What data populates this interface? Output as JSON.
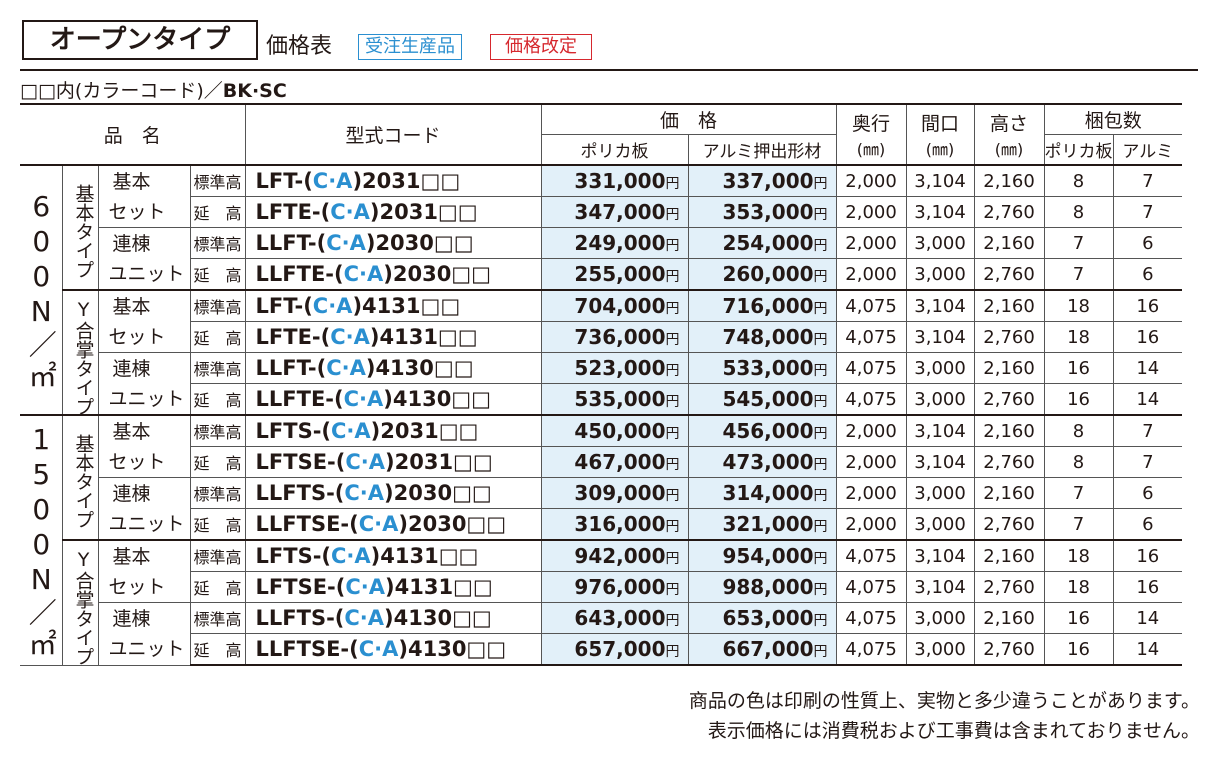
{
  "header": {
    "title": "オープンタイプ",
    "subtitle": "価格表",
    "tag_order": "受注生産品",
    "tag_revised": "価格改定",
    "note_prefix": "□□内(カラーコード)／",
    "note_codes": "BK·SC"
  },
  "table": {
    "head": {
      "name": "品　名",
      "code": "型式コード",
      "price": "価　格",
      "price_poly": "ポリカ板",
      "price_alum": "アルミ押出形材",
      "depth": [
        "奥行",
        "(㎜)"
      ],
      "width": [
        "間口",
        "(㎜)"
      ],
      "tall": [
        "高さ",
        "(㎜)"
      ],
      "pack": "梱包数",
      "pack_poly": "ポリカ板",
      "pack_alum": "アルミ"
    },
    "groups": [
      {
        "label": "600N／㎡",
        "types": [
          {
            "label": "基本タイプ",
            "sets": [
              {
                "label": [
                  "基本",
                  "セット"
                ],
                "rows": [
                  {
                    "height": "標準高",
                    "code": [
                      "LFT-(",
                      "C·A",
                      ")2031□□"
                    ],
                    "price": [
                      [
                        "331,000",
                        "円"
                      ],
                      [
                        "337,000",
                        "円"
                      ]
                    ],
                    "size": [
                      "2,000",
                      "3,104",
                      "2,160"
                    ],
                    "pack": [
                      "8",
                      "7"
                    ]
                  },
                  {
                    "height": "延　高",
                    "code": [
                      "LFTE-(",
                      "C·A",
                      ")2031□□"
                    ],
                    "price": [
                      [
                        "347,000",
                        "円"
                      ],
                      [
                        "353,000",
                        "円"
                      ]
                    ],
                    "size": [
                      "2,000",
                      "3,104",
                      "2,760"
                    ],
                    "pack": [
                      "8",
                      "7"
                    ]
                  }
                ]
              },
              {
                "label": [
                  "連棟",
                  "ユニット"
                ],
                "rows": [
                  {
                    "height": "標準高",
                    "code": [
                      "LLFT-(",
                      "C·A",
                      ")2030□□"
                    ],
                    "price": [
                      [
                        "249,000",
                        "円"
                      ],
                      [
                        "254,000",
                        "円"
                      ]
                    ],
                    "size": [
                      "2,000",
                      "3,000",
                      "2,160"
                    ],
                    "pack": [
                      "7",
                      "6"
                    ]
                  },
                  {
                    "height": "延　高",
                    "code": [
                      "LLFTE-(",
                      "C·A",
                      ")2030□□"
                    ],
                    "price": [
                      [
                        "255,000",
                        "円"
                      ],
                      [
                        "260,000",
                        "円"
                      ]
                    ],
                    "size": [
                      "2,000",
                      "3,000",
                      "2,760"
                    ],
                    "pack": [
                      "7",
                      "6"
                    ]
                  }
                ]
              }
            ]
          },
          {
            "label": "Y合掌タイプ",
            "sets": [
              {
                "label": [
                  "基本",
                  "セット"
                ],
                "rows": [
                  {
                    "height": "標準高",
                    "code": [
                      "LFT-(",
                      "C·A",
                      ")4131□□"
                    ],
                    "price": [
                      [
                        "704,000",
                        "円"
                      ],
                      [
                        "716,000",
                        "円"
                      ]
                    ],
                    "size": [
                      "4,075",
                      "3,104",
                      "2,160"
                    ],
                    "pack": [
                      "18",
                      "16"
                    ]
                  },
                  {
                    "height": "延　高",
                    "code": [
                      "LFTE-(",
                      "C·A",
                      ")4131□□"
                    ],
                    "price": [
                      [
                        "736,000",
                        "円"
                      ],
                      [
                        "748,000",
                        "円"
                      ]
                    ],
                    "size": [
                      "4,075",
                      "3,104",
                      "2,760"
                    ],
                    "pack": [
                      "18",
                      "16"
                    ]
                  }
                ]
              },
              {
                "label": [
                  "連棟",
                  "ユニット"
                ],
                "rows": [
                  {
                    "height": "標準高",
                    "code": [
                      "LLFT-(",
                      "C·A",
                      ")4130□□"
                    ],
                    "price": [
                      [
                        "523,000",
                        "円"
                      ],
                      [
                        "533,000",
                        "円"
                      ]
                    ],
                    "size": [
                      "4,075",
                      "3,000",
                      "2,160"
                    ],
                    "pack": [
                      "16",
                      "14"
                    ]
                  },
                  {
                    "height": "延　高",
                    "code": [
                      "LLFTE-(",
                      "C·A",
                      ")4130□□"
                    ],
                    "price": [
                      [
                        "535,000",
                        "円"
                      ],
                      [
                        "545,000",
                        "円"
                      ]
                    ],
                    "size": [
                      "4,075",
                      "3,000",
                      "2,760"
                    ],
                    "pack": [
                      "16",
                      "14"
                    ]
                  }
                ]
              }
            ]
          }
        ]
      },
      {
        "label": "1500N／㎡",
        "types": [
          {
            "label": "基本タイプ",
            "sets": [
              {
                "label": [
                  "基本",
                  "セット"
                ],
                "rows": [
                  {
                    "height": "標準高",
                    "code": [
                      "LFTS-(",
                      "C·A",
                      ")2031□□"
                    ],
                    "price": [
                      [
                        "450,000",
                        "円"
                      ],
                      [
                        "456,000",
                        "円"
                      ]
                    ],
                    "size": [
                      "2,000",
                      "3,104",
                      "2,160"
                    ],
                    "pack": [
                      "8",
                      "7"
                    ]
                  },
                  {
                    "height": "延　高",
                    "code": [
                      "LFTSE-(",
                      "C·A",
                      ")2031□□"
                    ],
                    "price": [
                      [
                        "467,000",
                        "円"
                      ],
                      [
                        "473,000",
                        "円"
                      ]
                    ],
                    "size": [
                      "2,000",
                      "3,104",
                      "2,760"
                    ],
                    "pack": [
                      "8",
                      "7"
                    ]
                  }
                ]
              },
              {
                "label": [
                  "連棟",
                  "ユニット"
                ],
                "rows": [
                  {
                    "height": "標準高",
                    "code": [
                      "LLFTS-(",
                      "C·A",
                      ")2030□□"
                    ],
                    "price": [
                      [
                        "309,000",
                        "円"
                      ],
                      [
                        "314,000",
                        "円"
                      ]
                    ],
                    "size": [
                      "2,000",
                      "3,000",
                      "2,160"
                    ],
                    "pack": [
                      "7",
                      "6"
                    ]
                  },
                  {
                    "height": "延　高",
                    "code": [
                      "LLFTSE-(",
                      "C·A",
                      ")2030□□"
                    ],
                    "price": [
                      [
                        "316,000",
                        "円"
                      ],
                      [
                        "321,000",
                        "円"
                      ]
                    ],
                    "size": [
                      "2,000",
                      "3,000",
                      "2,760"
                    ],
                    "pack": [
                      "7",
                      "6"
                    ]
                  }
                ]
              }
            ]
          },
          {
            "label": "Y合掌タイプ",
            "sets": [
              {
                "label": [
                  "基本",
                  "セット"
                ],
                "rows": [
                  {
                    "height": "標準高",
                    "code": [
                      "LFTS-(",
                      "C·A",
                      ")4131□□"
                    ],
                    "price": [
                      [
                        "942,000",
                        "円"
                      ],
                      [
                        "954,000",
                        "円"
                      ]
                    ],
                    "size": [
                      "4,075",
                      "3,104",
                      "2,160"
                    ],
                    "pack": [
                      "18",
                      "16"
                    ]
                  },
                  {
                    "height": "延　高",
                    "code": [
                      "LFTSE-(",
                      "C·A",
                      ")4131□□"
                    ],
                    "price": [
                      [
                        "976,000",
                        "円"
                      ],
                      [
                        "988,000",
                        "円"
                      ]
                    ],
                    "size": [
                      "4,075",
                      "3,104",
                      "2,760"
                    ],
                    "pack": [
                      "18",
                      "16"
                    ]
                  }
                ]
              },
              {
                "label": [
                  "連棟",
                  "ユニット"
                ],
                "rows": [
                  {
                    "height": "標準高",
                    "code": [
                      "LLFTS-(",
                      "C·A",
                      ")4130□□"
                    ],
                    "price": [
                      [
                        "643,000",
                        "円"
                      ],
                      [
                        "653,000",
                        "円"
                      ]
                    ],
                    "size": [
                      "4,075",
                      "3,000",
                      "2,160"
                    ],
                    "pack": [
                      "16",
                      "14"
                    ]
                  },
                  {
                    "height": "延　高",
                    "code": [
                      "LLFTSE-(",
                      "C·A",
                      ")4130□□"
                    ],
                    "price": [
                      [
                        "657,000",
                        "円"
                      ],
                      [
                        "667,000",
                        "円"
                      ]
                    ],
                    "size": [
                      "4,075",
                      "3,000",
                      "2,760"
                    ],
                    "pack": [
                      "16",
                      "14"
                    ]
                  }
                ]
              }
            ]
          }
        ]
      }
    ]
  },
  "footer": {
    "lines": [
      "商品の色は印刷の性質上、実物と多少違うことがあります。",
      "表示価格には消費税および工事費は含まれておりません。"
    ]
  }
}
